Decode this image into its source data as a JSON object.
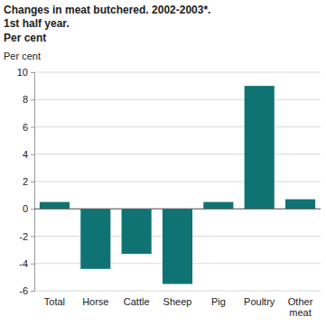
{
  "chart_data": {
    "type": "bar",
    "title": "Changes in meat butchered. 2002-2003*. 1st half year.",
    "subtitle": "Per cent",
    "y_label": "Per cent",
    "categories": [
      "Total",
      "Horse",
      "Cattle",
      "Sheep",
      "Pig",
      "Poultry",
      "Other meat"
    ],
    "values": [
      0.5,
      -4.4,
      -3.3,
      -5.5,
      0.5,
      9.0,
      0.7
    ],
    "color": "#0f7373",
    "ylim": [
      -6,
      10
    ],
    "yticks": [
      -6,
      -4,
      -2,
      0,
      2,
      4,
      6,
      8,
      10
    ],
    "grid": true
  }
}
